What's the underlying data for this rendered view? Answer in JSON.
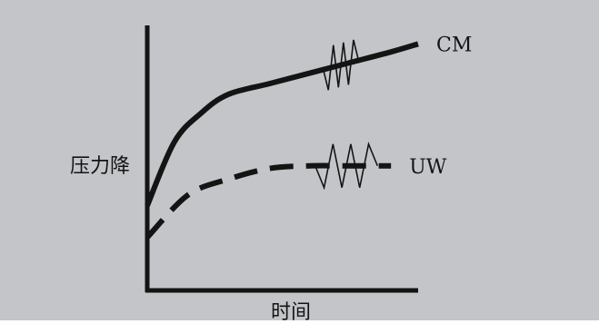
{
  "chart_data": {
    "type": "line",
    "title": "",
    "xlabel": "时间",
    "ylabel": "压力降",
    "grid": false,
    "legend": "none",
    "colors": {
      "background": "#c4c5c9",
      "ink": "#141414"
    },
    "series": [
      {
        "name": "CM",
        "style": "solid",
        "label_position": "right-end",
        "x": [
          0,
          0.1,
          0.2,
          0.3,
          0.45,
          0.6,
          0.75,
          0.9,
          1.0
        ],
        "y": [
          0.32,
          0.56,
          0.67,
          0.74,
          0.78,
          0.82,
          0.86,
          0.9,
          0.93
        ]
      },
      {
        "name": "UW",
        "style": "dashed",
        "label_position": "right-end",
        "x": [
          0,
          0.15,
          0.3,
          0.45,
          0.6,
          0.75,
          0.9
        ],
        "y": [
          0.2,
          0.36,
          0.42,
          0.46,
          0.47,
          0.47,
          0.47
        ]
      }
    ],
    "annotations": [
      {
        "type": "zigzag",
        "series": "CM",
        "x_range": [
          0.65,
          0.78
        ]
      },
      {
        "type": "zigzag",
        "series": "UW",
        "x_range": [
          0.62,
          0.85
        ]
      }
    ]
  }
}
